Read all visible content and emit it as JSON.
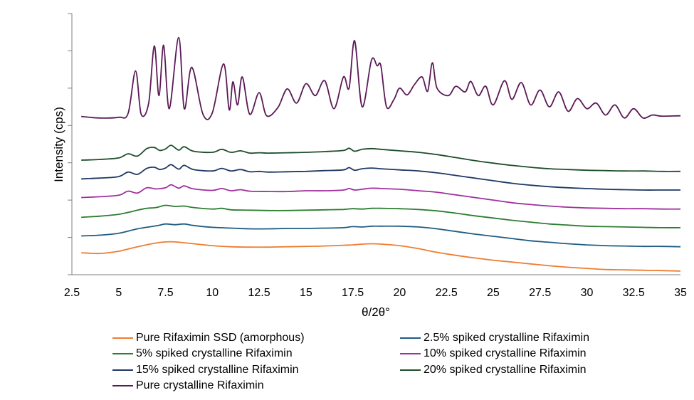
{
  "chart_data": {
    "type": "line",
    "xlabel": "θ/2θ°",
    "ylabel": "Intensity (cps)",
    "xlim": [
      2.5,
      35
    ],
    "ylim": [
      0,
      7
    ],
    "x_ticks": [
      "2.5",
      "5",
      "7.5",
      "10",
      "12.5",
      "15",
      "17.5",
      "20",
      "22.5",
      "25",
      "27.5",
      "30",
      "32.5",
      "35"
    ],
    "y_ticks": [
      0,
      1,
      2,
      3,
      4,
      5,
      6,
      7
    ],
    "y_tick_labels_shown": false,
    "grid": false,
    "legend_position": "bottom",
    "series": [
      {
        "name": "Pure Rifaximin SSD (amorphous)",
        "color": "#ed7d31",
        "x": [
          3,
          4,
          5,
          6,
          7,
          7.5,
          8,
          9,
          10,
          11,
          12,
          13,
          14,
          15,
          16,
          17,
          17.5,
          18,
          18.5,
          19,
          20,
          21,
          22,
          23,
          24,
          25,
          26,
          27,
          28,
          29,
          30,
          31,
          32,
          33,
          34,
          35
        ],
        "y": [
          0.59,
          0.57,
          0.63,
          0.75,
          0.85,
          0.88,
          0.88,
          0.83,
          0.78,
          0.75,
          0.74,
          0.74,
          0.75,
          0.76,
          0.77,
          0.79,
          0.8,
          0.82,
          0.83,
          0.82,
          0.78,
          0.7,
          0.6,
          0.52,
          0.45,
          0.39,
          0.34,
          0.29,
          0.24,
          0.2,
          0.17,
          0.14,
          0.13,
          0.12,
          0.11,
          0.1
        ]
      },
      {
        "name": "2.5% spiked crystalline Rifaximin",
        "color": "#1f5c82",
        "x": [
          3,
          4,
          5,
          6,
          7,
          7.5,
          8,
          8.5,
          9,
          10,
          11,
          12,
          13,
          14,
          15,
          16,
          17,
          17.5,
          18,
          18.5,
          19,
          20,
          21,
          22,
          23,
          24,
          25,
          26,
          27,
          28,
          29,
          30,
          31,
          32,
          33,
          34,
          35
        ],
        "y": [
          1.04,
          1.06,
          1.11,
          1.23,
          1.31,
          1.36,
          1.34,
          1.36,
          1.32,
          1.27,
          1.25,
          1.23,
          1.23,
          1.24,
          1.24,
          1.25,
          1.26,
          1.29,
          1.28,
          1.3,
          1.3,
          1.3,
          1.28,
          1.23,
          1.16,
          1.09,
          1.03,
          0.97,
          0.91,
          0.87,
          0.83,
          0.8,
          0.78,
          0.77,
          0.76,
          0.76,
          0.75
        ]
      },
      {
        "name": "5% spiked crystalline Rifaximin",
        "color": "#2e7d32",
        "x": [
          3,
          4,
          5,
          5.5,
          6,
          6.5,
          7,
          7.5,
          8,
          8.5,
          9,
          10,
          10.5,
          11,
          12,
          13,
          14,
          15,
          16,
          17,
          17.5,
          18,
          18.5,
          19,
          20,
          21,
          22,
          23,
          24,
          25,
          26,
          27,
          28,
          29,
          30,
          31,
          32,
          33,
          34,
          35
        ],
        "y": [
          1.54,
          1.57,
          1.62,
          1.67,
          1.73,
          1.78,
          1.8,
          1.86,
          1.83,
          1.84,
          1.8,
          1.76,
          1.78,
          1.74,
          1.73,
          1.72,
          1.72,
          1.73,
          1.74,
          1.75,
          1.77,
          1.76,
          1.78,
          1.78,
          1.77,
          1.75,
          1.71,
          1.65,
          1.58,
          1.52,
          1.46,
          1.41,
          1.36,
          1.33,
          1.3,
          1.29,
          1.28,
          1.27,
          1.26,
          1.26
        ]
      },
      {
        "name": "10% spiked crystalline Rifaximin",
        "color": "#a0309e",
        "x": [
          3,
          4,
          5,
          5.5,
          6,
          6.5,
          7,
          7.5,
          7.8,
          8.2,
          8.5,
          9,
          10,
          10.5,
          11,
          11.5,
          12,
          13,
          14,
          15,
          16,
          17,
          17.3,
          17.6,
          18,
          18.5,
          19,
          20,
          21,
          22,
          23,
          24,
          25,
          26,
          27,
          28,
          29,
          30,
          31,
          32,
          33,
          34,
          35
        ],
        "y": [
          2.07,
          2.09,
          2.13,
          2.24,
          2.19,
          2.33,
          2.3,
          2.33,
          2.41,
          2.32,
          2.38,
          2.3,
          2.26,
          2.31,
          2.25,
          2.28,
          2.24,
          2.23,
          2.23,
          2.25,
          2.25,
          2.27,
          2.31,
          2.27,
          2.29,
          2.32,
          2.31,
          2.29,
          2.25,
          2.21,
          2.14,
          2.07,
          2.0,
          1.93,
          1.88,
          1.84,
          1.81,
          1.79,
          1.78,
          1.77,
          1.77,
          1.76,
          1.76
        ]
      },
      {
        "name": "15% spiked crystalline Rifaximin",
        "color": "#1f3864",
        "x": [
          3,
          4,
          5,
          5.5,
          6,
          6.5,
          6.9,
          7.2,
          7.5,
          7.8,
          8.2,
          8.5,
          9,
          10,
          10.5,
          11,
          11.5,
          12,
          12.5,
          13,
          14,
          15,
          16,
          17,
          17.3,
          17.6,
          18,
          18.5,
          19,
          20,
          21,
          22,
          23,
          24,
          25,
          26,
          27,
          28,
          29,
          30,
          31,
          32,
          33,
          34,
          35
        ],
        "y": [
          2.57,
          2.59,
          2.63,
          2.75,
          2.69,
          2.85,
          2.88,
          2.82,
          2.86,
          2.95,
          2.83,
          2.93,
          2.82,
          2.78,
          2.85,
          2.78,
          2.82,
          2.76,
          2.77,
          2.75,
          2.76,
          2.77,
          2.79,
          2.81,
          2.87,
          2.8,
          2.84,
          2.86,
          2.84,
          2.81,
          2.78,
          2.73,
          2.66,
          2.59,
          2.52,
          2.45,
          2.4,
          2.36,
          2.33,
          2.31,
          2.29,
          2.28,
          2.27,
          2.27,
          2.27
        ]
      },
      {
        "name": "20% spiked crystalline Rifaximin",
        "color": "#1e4d2b",
        "x": [
          3,
          4,
          5,
          5.5,
          6,
          6.5,
          6.9,
          7.2,
          7.5,
          7.8,
          8.2,
          8.5,
          9,
          10,
          10.5,
          11,
          11.5,
          12,
          12.5,
          13,
          14,
          15,
          16,
          17,
          17.3,
          17.6,
          18,
          18.5,
          19,
          20,
          21,
          22,
          23,
          24,
          25,
          26,
          27,
          28,
          29,
          30,
          31,
          32,
          33,
          34,
          35
        ],
        "y": [
          3.07,
          3.09,
          3.13,
          3.24,
          3.18,
          3.38,
          3.41,
          3.33,
          3.37,
          3.47,
          3.34,
          3.43,
          3.31,
          3.28,
          3.36,
          3.28,
          3.32,
          3.26,
          3.27,
          3.26,
          3.27,
          3.28,
          3.3,
          3.33,
          3.39,
          3.31,
          3.36,
          3.38,
          3.36,
          3.32,
          3.28,
          3.22,
          3.14,
          3.06,
          2.99,
          2.93,
          2.88,
          2.84,
          2.82,
          2.8,
          2.79,
          2.78,
          2.78,
          2.77,
          2.77
        ]
      },
      {
        "name": "Pure crystalline Rifaximin",
        "color": "#5b1a56",
        "x": [
          3,
          4,
          5,
          5.5,
          5.9,
          6.2,
          6.6,
          6.9,
          7.15,
          7.4,
          7.7,
          8.2,
          8.5,
          8.9,
          9.5,
          10,
          10.6,
          10.9,
          11.1,
          11.35,
          11.6,
          12,
          12.5,
          12.9,
          13.5,
          14,
          14.5,
          15,
          15.5,
          16,
          16.5,
          17,
          17.3,
          17.6,
          18,
          18.5,
          18.8,
          19,
          19.3,
          19.7,
          20,
          20.4,
          20.8,
          21.2,
          21.5,
          21.75,
          22,
          22.6,
          23,
          23.5,
          23.8,
          24.2,
          24.6,
          25,
          25.6,
          26,
          26.5,
          27,
          27.5,
          28,
          28.5,
          29,
          29.5,
          30,
          30.5,
          31,
          31.5,
          32,
          32.5,
          33,
          33.5,
          34,
          35
        ],
        "y": [
          4.24,
          4.2,
          4.22,
          4.32,
          5.46,
          4.3,
          4.6,
          6.13,
          4.8,
          6.15,
          4.45,
          6.36,
          4.45,
          5.56,
          4.3,
          4.34,
          5.65,
          4.42,
          5.17,
          4.55,
          5.3,
          4.3,
          4.88,
          4.26,
          4.48,
          4.98,
          4.6,
          5.12,
          4.8,
          5.2,
          4.45,
          5.3,
          5.0,
          6.27,
          4.5,
          5.75,
          5.6,
          5.6,
          4.5,
          4.7,
          5.0,
          4.82,
          5.1,
          5.3,
          4.92,
          5.68,
          5.0,
          4.8,
          5.05,
          4.9,
          5.18,
          4.8,
          5.05,
          4.55,
          5.2,
          4.7,
          5.15,
          4.55,
          4.95,
          4.5,
          4.9,
          4.38,
          4.72,
          4.45,
          4.6,
          4.28,
          4.55,
          4.2,
          4.45,
          4.2,
          4.28,
          4.25,
          4.26
        ]
      }
    ]
  }
}
